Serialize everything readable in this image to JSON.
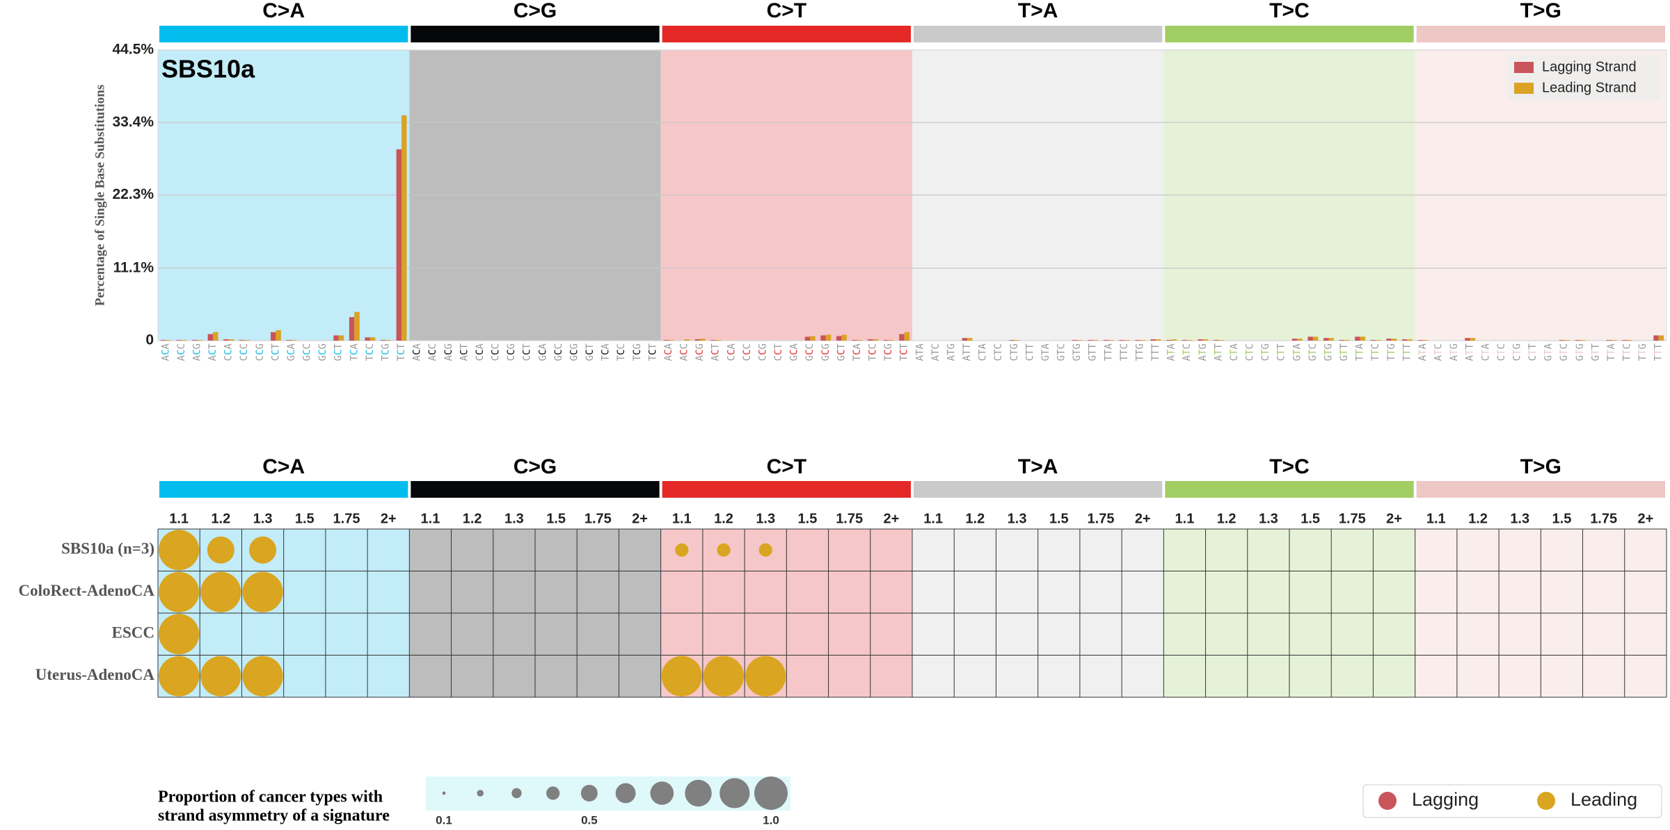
{
  "chart_data": [
    {
      "type": "bar",
      "title": "SBS10a",
      "ylabel": "Percentage of Single Base Substitutions",
      "groups": [
        {
          "label": "C>A",
          "color": "#03bcee",
          "background": "#c2ecf8"
        },
        {
          "label": "C>G",
          "color": "#050708",
          "background": "#bdbdbd"
        },
        {
          "label": "C>T",
          "color": "#e42926",
          "background": "#f6c7c9"
        },
        {
          "label": "T>A",
          "color": "#cbcacb",
          "background": "#f0f0f0"
        },
        {
          "label": "T>C",
          "color": "#a1ce63",
          "background": "#e5f2d8"
        },
        {
          "label": "T>G",
          "color": "#edc8c5",
          "background": "#f9eeeb"
        }
      ],
      "categories": [
        "ACA",
        "ACC",
        "ACG",
        "ACT",
        "CCA",
        "CCC",
        "CCG",
        "CCT",
        "GCA",
        "GCC",
        "GCG",
        "GCT",
        "TCA",
        "TCC",
        "TCG",
        "TCT",
        "ACA",
        "ACC",
        "ACG",
        "ACT",
        "CCA",
        "CCC",
        "CCG",
        "CCT",
        "GCA",
        "GCC",
        "GCG",
        "GCT",
        "TCA",
        "TCC",
        "TCG",
        "TCT",
        "ACA",
        "ACC",
        "ACG",
        "ACT",
        "CCA",
        "CCC",
        "CCG",
        "CCT",
        "GCA",
        "GCC",
        "GCG",
        "GCT",
        "TCA",
        "TCC",
        "TCG",
        "TCT",
        "ATA",
        "ATC",
        "ATG",
        "ATT",
        "CTA",
        "CTC",
        "CTG",
        "CTT",
        "GTA",
        "GTC",
        "GTG",
        "GTT",
        "TTA",
        "TTC",
        "TTG",
        "TTT",
        "ATA",
        "ATC",
        "ATG",
        "ATT",
        "CTA",
        "CTC",
        "CTG",
        "CTT",
        "GTA",
        "GTC",
        "GTG",
        "GTT",
        "TTA",
        "TTC",
        "TTG",
        "TTT",
        "ATA",
        "ATC",
        "ATG",
        "ATT",
        "CTA",
        "CTC",
        "CTG",
        "CTT",
        "GTA",
        "GTC",
        "GTG",
        "GTT",
        "TTA",
        "TTC",
        "TTG",
        "TTT"
      ],
      "series": [
        {
          "name": "Lagging Strand",
          "color": "#c9545a",
          "values": [
            0.1,
            0.1,
            0.1,
            1.0,
            0.2,
            0.1,
            0,
            1.3,
            0.1,
            0,
            0,
            0.8,
            3.6,
            0.5,
            0.1,
            29.3,
            0,
            0,
            0,
            0,
            0,
            0,
            0,
            0,
            0,
            0,
            0,
            0,
            0,
            0,
            0,
            0,
            0.1,
            0,
            0.2,
            0.1,
            0,
            0,
            0,
            0,
            0,
            0.6,
            0.8,
            0.7,
            0.1,
            0.2,
            0.1,
            1.0,
            0,
            0,
            0,
            0.4,
            0,
            0,
            0.1,
            0,
            0,
            0,
            0.1,
            0.1,
            0.1,
            0.1,
            0.1,
            0.2,
            0.1,
            0.1,
            0.2,
            0.1,
            0,
            0,
            0,
            0,
            0.3,
            0.6,
            0.4,
            0.1,
            0.6,
            0.1,
            0.3,
            0.2,
            0.1,
            0,
            0,
            0.4,
            0,
            0,
            0,
            0,
            0,
            0.1,
            0.1,
            0,
            0.1,
            0.1,
            0,
            0.8
          ]
        },
        {
          "name": "Leading Strand",
          "color": "#dba226",
          "values": [
            0.1,
            0.1,
            0.1,
            1.3,
            0.2,
            0.1,
            0,
            1.6,
            0.1,
            0,
            0,
            0.8,
            4.4,
            0.5,
            0.1,
            34.5,
            0,
            0,
            0,
            0,
            0,
            0,
            0,
            0,
            0,
            0,
            0,
            0,
            0,
            0,
            0,
            0,
            0.1,
            0.2,
            0.3,
            0.1,
            0,
            0,
            0,
            0,
            0,
            0.7,
            0.9,
            0.9,
            0.1,
            0.2,
            0.1,
            1.3,
            0,
            0,
            0,
            0.4,
            0,
            0,
            0.1,
            0,
            0,
            0,
            0.1,
            0.1,
            0.1,
            0.1,
            0.1,
            0.2,
            0.2,
            0.1,
            0.2,
            0.1,
            0,
            0,
            0,
            0,
            0.3,
            0.6,
            0.4,
            0.1,
            0.6,
            0.1,
            0.3,
            0.2,
            0.1,
            0,
            0,
            0.4,
            0,
            0,
            0,
            0,
            0,
            0.1,
            0.1,
            0,
            0.1,
            0.1,
            0,
            0.8
          ]
        }
      ],
      "ylim": [
        0,
        44.5
      ],
      "yticks": [
        0,
        {
          "value": 11.1,
          "label": "11.1%"
        },
        {
          "value": 22.3,
          "label": "22.3%"
        },
        {
          "value": 33.4,
          "label": "33.4%"
        },
        {
          "value": 44.5,
          "label": "44.5%"
        }
      ],
      "grid": true,
      "legend": "upper right"
    },
    {
      "type": "bubble",
      "groups": [
        {
          "label": "C>A",
          "color": "#03bcee",
          "background": "#c2ecf8"
        },
        {
          "label": "C>G",
          "color": "#050708",
          "background": "#bdbdbd"
        },
        {
          "label": "C>T",
          "color": "#e42926",
          "background": "#f6c7c9"
        },
        {
          "label": "T>A",
          "color": "#cbcacb",
          "background": "#f0f0f0"
        },
        {
          "label": "T>C",
          "color": "#a1ce63",
          "background": "#e5f2d8"
        },
        {
          "label": "T>G",
          "color": "#edc8c5",
          "background": "#f9eeeb"
        }
      ],
      "bins": [
        "1.1",
        "1.2",
        "1.3",
        "1.5",
        "1.75",
        "2+"
      ],
      "rows": [
        "SBS10a (n=3)",
        "ColoRect-AdenoCA",
        "ESCC",
        "Uterus-AdenoCA"
      ],
      "series": [
        {
          "name": "Lagging",
          "color": "#c9545a",
          "values": [
            [
              null,
              null,
              null,
              null,
              null,
              null,
              null,
              null,
              null,
              null,
              null,
              null,
              null,
              null,
              null,
              null,
              null,
              null,
              null,
              null,
              null,
              null,
              null,
              null,
              null,
              null,
              null,
              null,
              null,
              null,
              null,
              null,
              null,
              null,
              null,
              null
            ],
            [
              null,
              null,
              null,
              null,
              null,
              null,
              null,
              null,
              null,
              null,
              null,
              null,
              null,
              null,
              null,
              null,
              null,
              null,
              null,
              null,
              null,
              null,
              null,
              null,
              null,
              null,
              null,
              null,
              null,
              null,
              null,
              null,
              null,
              null,
              null,
              null
            ],
            [
              null,
              null,
              null,
              null,
              null,
              null,
              null,
              null,
              null,
              null,
              null,
              null,
              null,
              null,
              null,
              null,
              null,
              null,
              null,
              null,
              null,
              null,
              null,
              null,
              null,
              null,
              null,
              null,
              null,
              null,
              null,
              null,
              null,
              null,
              null,
              null
            ],
            [
              null,
              null,
              null,
              null,
              null,
              null,
              null,
              null,
              null,
              null,
              null,
              null,
              null,
              null,
              null,
              null,
              null,
              null,
              null,
              null,
              null,
              null,
              null,
              null,
              null,
              null,
              null,
              null,
              null,
              null,
              null,
              null,
              null,
              null,
              null,
              null
            ]
          ]
        },
        {
          "name": "Leading",
          "color": "#daa520",
          "values": [
            [
              1,
              0.67,
              0.67,
              null,
              null,
              null,
              null,
              null,
              null,
              null,
              null,
              null,
              0.33,
              0.33,
              0.33,
              null,
              null,
              null,
              null,
              null,
              null,
              null,
              null,
              null,
              null,
              null,
              null,
              null,
              null,
              null,
              null,
              null,
              null,
              null,
              null,
              null
            ],
            [
              1,
              1,
              1,
              null,
              null,
              null,
              null,
              null,
              null,
              null,
              null,
              null,
              null,
              null,
              null,
              null,
              null,
              null,
              null,
              null,
              null,
              null,
              null,
              null,
              null,
              null,
              null,
              null,
              null,
              null,
              null,
              null,
              null,
              null,
              null,
              null
            ],
            [
              1,
              null,
              null,
              null,
              null,
              null,
              null,
              null,
              null,
              null,
              null,
              null,
              null,
              null,
              null,
              null,
              null,
              null,
              null,
              null,
              null,
              null,
              null,
              null,
              null,
              null,
              null,
              null,
              null,
              null,
              null,
              null,
              null,
              null,
              null,
              null
            ],
            [
              1,
              1,
              1,
              null,
              null,
              null,
              null,
              null,
              null,
              null,
              null,
              null,
              1,
              1,
              1,
              null,
              null,
              null,
              null,
              null,
              null,
              null,
              null,
              null,
              null,
              null,
              null,
              null,
              null,
              null,
              null,
              null,
              null,
              null,
              null,
              null
            ]
          ]
        }
      ],
      "size_legend": {
        "title": [
          "Proportion of cancer types with",
          "strand asymmetry of a signature"
        ],
        "values": [
          0.1,
          0.2,
          0.3,
          0.4,
          0.5,
          0.6,
          0.7,
          0.8,
          0.9,
          1
        ],
        "ticks": [
          0.1,
          0.5,
          {
            "value": 1,
            "label": "1.0"
          }
        ],
        "color": "#808080",
        "background": "#dff8fa"
      },
      "legend": "lower right"
    }
  ]
}
